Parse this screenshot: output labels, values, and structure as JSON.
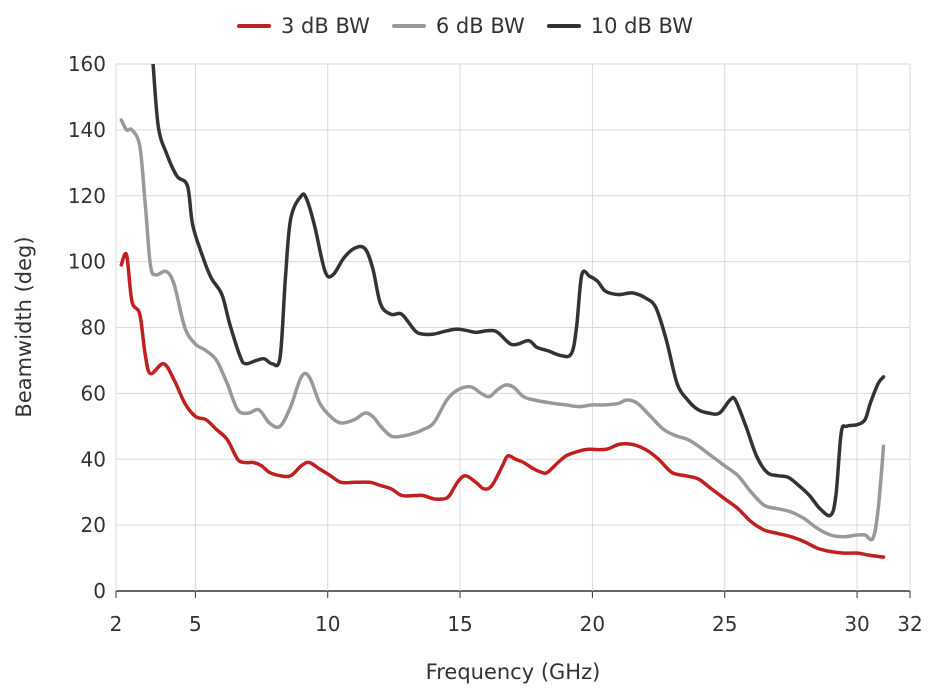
{
  "chart_data": {
    "type": "line",
    "xlabel": "Frequency (GHz)",
    "ylabel": "Beamwidth (deg)",
    "xlim": [
      2,
      32
    ],
    "ylim": [
      0,
      160
    ],
    "xticks": [
      2,
      5,
      10,
      15,
      20,
      25,
      30,
      32
    ],
    "yticks": [
      0,
      20,
      40,
      60,
      80,
      100,
      120,
      140,
      160
    ],
    "grid": true,
    "legend_position": "top-center",
    "series": [
      {
        "name": "3 dB BW",
        "color": "#c0201f",
        "points": [
          [
            2.2,
            99
          ],
          [
            2.4,
            102
          ],
          [
            2.6,
            88
          ],
          [
            2.9,
            84
          ],
          [
            3.1,
            72
          ],
          [
            3.3,
            66
          ],
          [
            3.8,
            69
          ],
          [
            4.2,
            64
          ],
          [
            4.6,
            57
          ],
          [
            5.0,
            53
          ],
          [
            5.4,
            52
          ],
          [
            5.8,
            49
          ],
          [
            6.2,
            46
          ],
          [
            6.6,
            40
          ],
          [
            6.9,
            39
          ],
          [
            7.2,
            39
          ],
          [
            7.5,
            38
          ],
          [
            7.8,
            36
          ],
          [
            8.2,
            35
          ],
          [
            8.6,
            35
          ],
          [
            9.0,
            38
          ],
          [
            9.3,
            39
          ],
          [
            9.7,
            37
          ],
          [
            10.1,
            35
          ],
          [
            10.5,
            33
          ],
          [
            11.0,
            33
          ],
          [
            11.6,
            33
          ],
          [
            12.0,
            32
          ],
          [
            12.4,
            31
          ],
          [
            12.8,
            29
          ],
          [
            13.3,
            29
          ],
          [
            13.6,
            29
          ],
          [
            14.0,
            28
          ],
          [
            14.4,
            28
          ],
          [
            14.6,
            29
          ],
          [
            14.9,
            33
          ],
          [
            15.2,
            35
          ],
          [
            15.6,
            33
          ],
          [
            15.9,
            31
          ],
          [
            16.2,
            32
          ],
          [
            16.6,
            38
          ],
          [
            16.8,
            41
          ],
          [
            17.1,
            40
          ],
          [
            17.4,
            39
          ],
          [
            17.8,
            37
          ],
          [
            18.1,
            36
          ],
          [
            18.3,
            36
          ],
          [
            18.7,
            39
          ],
          [
            19.0,
            41
          ],
          [
            19.3,
            42
          ],
          [
            19.8,
            43
          ],
          [
            20.5,
            43
          ],
          [
            21.0,
            44.5
          ],
          [
            21.5,
            44.5
          ],
          [
            22.0,
            43
          ],
          [
            22.5,
            40
          ],
          [
            23.0,
            36
          ],
          [
            23.5,
            35
          ],
          [
            24.0,
            34
          ],
          [
            24.5,
            31
          ],
          [
            25.0,
            28
          ],
          [
            25.5,
            25
          ],
          [
            26.0,
            21
          ],
          [
            26.5,
            18.5
          ],
          [
            27.0,
            17.5
          ],
          [
            27.5,
            16.5
          ],
          [
            28.0,
            15
          ],
          [
            28.5,
            13
          ],
          [
            29.0,
            12
          ],
          [
            29.5,
            11.5
          ],
          [
            30.0,
            11.5
          ],
          [
            30.5,
            10.8
          ],
          [
            31.0,
            10.3
          ]
        ]
      },
      {
        "name": "6 dB BW",
        "color": "#999999",
        "points": [
          [
            2.2,
            143
          ],
          [
            2.4,
            140
          ],
          [
            2.6,
            140
          ],
          [
            2.9,
            135
          ],
          [
            3.1,
            118
          ],
          [
            3.3,
            99
          ],
          [
            3.5,
            96
          ],
          [
            3.9,
            97
          ],
          [
            4.2,
            93
          ],
          [
            4.6,
            80
          ],
          [
            5.0,
            75
          ],
          [
            5.4,
            73
          ],
          [
            5.8,
            70
          ],
          [
            6.2,
            63
          ],
          [
            6.6,
            55
          ],
          [
            7.0,
            54
          ],
          [
            7.4,
            55
          ],
          [
            7.8,
            51
          ],
          [
            8.2,
            50
          ],
          [
            8.6,
            56
          ],
          [
            9.0,
            65
          ],
          [
            9.3,
            65
          ],
          [
            9.7,
            57
          ],
          [
            10.1,
            53
          ],
          [
            10.5,
            51
          ],
          [
            11.0,
            52
          ],
          [
            11.4,
            54
          ],
          [
            11.7,
            53
          ],
          [
            12.0,
            50
          ],
          [
            12.4,
            47
          ],
          [
            12.8,
            47
          ],
          [
            13.3,
            48
          ],
          [
            13.6,
            49
          ],
          [
            14.0,
            51
          ],
          [
            14.5,
            58
          ],
          [
            14.9,
            61
          ],
          [
            15.4,
            62
          ],
          [
            15.8,
            60
          ],
          [
            16.1,
            59
          ],
          [
            16.4,
            61
          ],
          [
            16.7,
            62.5
          ],
          [
            17.0,
            62
          ],
          [
            17.4,
            59
          ],
          [
            17.8,
            58
          ],
          [
            18.5,
            57
          ],
          [
            19.0,
            56.5
          ],
          [
            19.5,
            56
          ],
          [
            20.0,
            56.5
          ],
          [
            20.5,
            56.5
          ],
          [
            21.0,
            57
          ],
          [
            21.3,
            58
          ],
          [
            21.7,
            57
          ],
          [
            22.2,
            53
          ],
          [
            22.7,
            49
          ],
          [
            23.2,
            47
          ],
          [
            23.6,
            46
          ],
          [
            24.0,
            44
          ],
          [
            24.5,
            41
          ],
          [
            25.0,
            38
          ],
          [
            25.5,
            35
          ],
          [
            26.0,
            30
          ],
          [
            26.5,
            26
          ],
          [
            27.0,
            25
          ],
          [
            27.5,
            24
          ],
          [
            28.0,
            22
          ],
          [
            28.5,
            19
          ],
          [
            29.0,
            17
          ],
          [
            29.5,
            16.5
          ],
          [
            30.0,
            17
          ],
          [
            30.3,
            17
          ],
          [
            30.6,
            16
          ],
          [
            30.8,
            25
          ],
          [
            31.0,
            44
          ]
        ]
      },
      {
        "name": "10 dB BW",
        "color": "#333333",
        "points": [
          [
            3.4,
            160
          ],
          [
            3.6,
            141
          ],
          [
            3.9,
            133
          ],
          [
            4.3,
            126
          ],
          [
            4.7,
            123
          ],
          [
            4.9,
            111
          ],
          [
            5.3,
            101
          ],
          [
            5.6,
            95
          ],
          [
            6.0,
            90
          ],
          [
            6.3,
            81
          ],
          [
            6.7,
            71
          ],
          [
            6.9,
            69
          ],
          [
            7.3,
            70
          ],
          [
            7.6,
            70.5
          ],
          [
            7.9,
            69
          ],
          [
            8.2,
            71
          ],
          [
            8.4,
            95
          ],
          [
            8.6,
            113
          ],
          [
            9.0,
            120
          ],
          [
            9.2,
            119
          ],
          [
            9.5,
            111
          ],
          [
            9.9,
            97
          ],
          [
            10.2,
            96
          ],
          [
            10.6,
            101
          ],
          [
            11.0,
            104
          ],
          [
            11.4,
            104
          ],
          [
            11.7,
            98
          ],
          [
            12.0,
            87
          ],
          [
            12.4,
            84
          ],
          [
            12.8,
            84
          ],
          [
            13.3,
            79
          ],
          [
            13.6,
            78
          ],
          [
            14.0,
            78
          ],
          [
            14.5,
            79
          ],
          [
            14.9,
            79.5
          ],
          [
            15.3,
            79
          ],
          [
            15.6,
            78.5
          ],
          [
            16.0,
            79
          ],
          [
            16.3,
            79
          ],
          [
            16.5,
            78
          ],
          [
            16.9,
            75
          ],
          [
            17.2,
            75
          ],
          [
            17.6,
            76
          ],
          [
            17.9,
            74
          ],
          [
            18.3,
            73
          ],
          [
            18.8,
            71.5
          ],
          [
            19.2,
            72
          ],
          [
            19.4,
            80
          ],
          [
            19.6,
            96
          ],
          [
            19.9,
            95.5
          ],
          [
            20.2,
            94
          ],
          [
            20.5,
            91
          ],
          [
            21.0,
            90
          ],
          [
            21.5,
            90.5
          ],
          [
            22.0,
            89
          ],
          [
            22.4,
            86
          ],
          [
            22.8,
            76
          ],
          [
            23.2,
            63
          ],
          [
            23.6,
            58
          ],
          [
            24.0,
            55
          ],
          [
            24.4,
            54
          ],
          [
            24.8,
            54
          ],
          [
            25.2,
            58
          ],
          [
            25.4,
            58
          ],
          [
            25.8,
            50
          ],
          [
            26.2,
            41
          ],
          [
            26.6,
            36
          ],
          [
            27.0,
            35
          ],
          [
            27.4,
            34.5
          ],
          [
            27.8,
            32
          ],
          [
            28.2,
            29
          ],
          [
            28.6,
            25
          ],
          [
            29.0,
            23
          ],
          [
            29.2,
            29
          ],
          [
            29.4,
            48
          ],
          [
            29.6,
            50
          ],
          [
            30.0,
            50.5
          ],
          [
            30.3,
            52
          ],
          [
            30.5,
            57
          ],
          [
            30.8,
            63
          ],
          [
            31.0,
            65
          ]
        ]
      }
    ]
  }
}
